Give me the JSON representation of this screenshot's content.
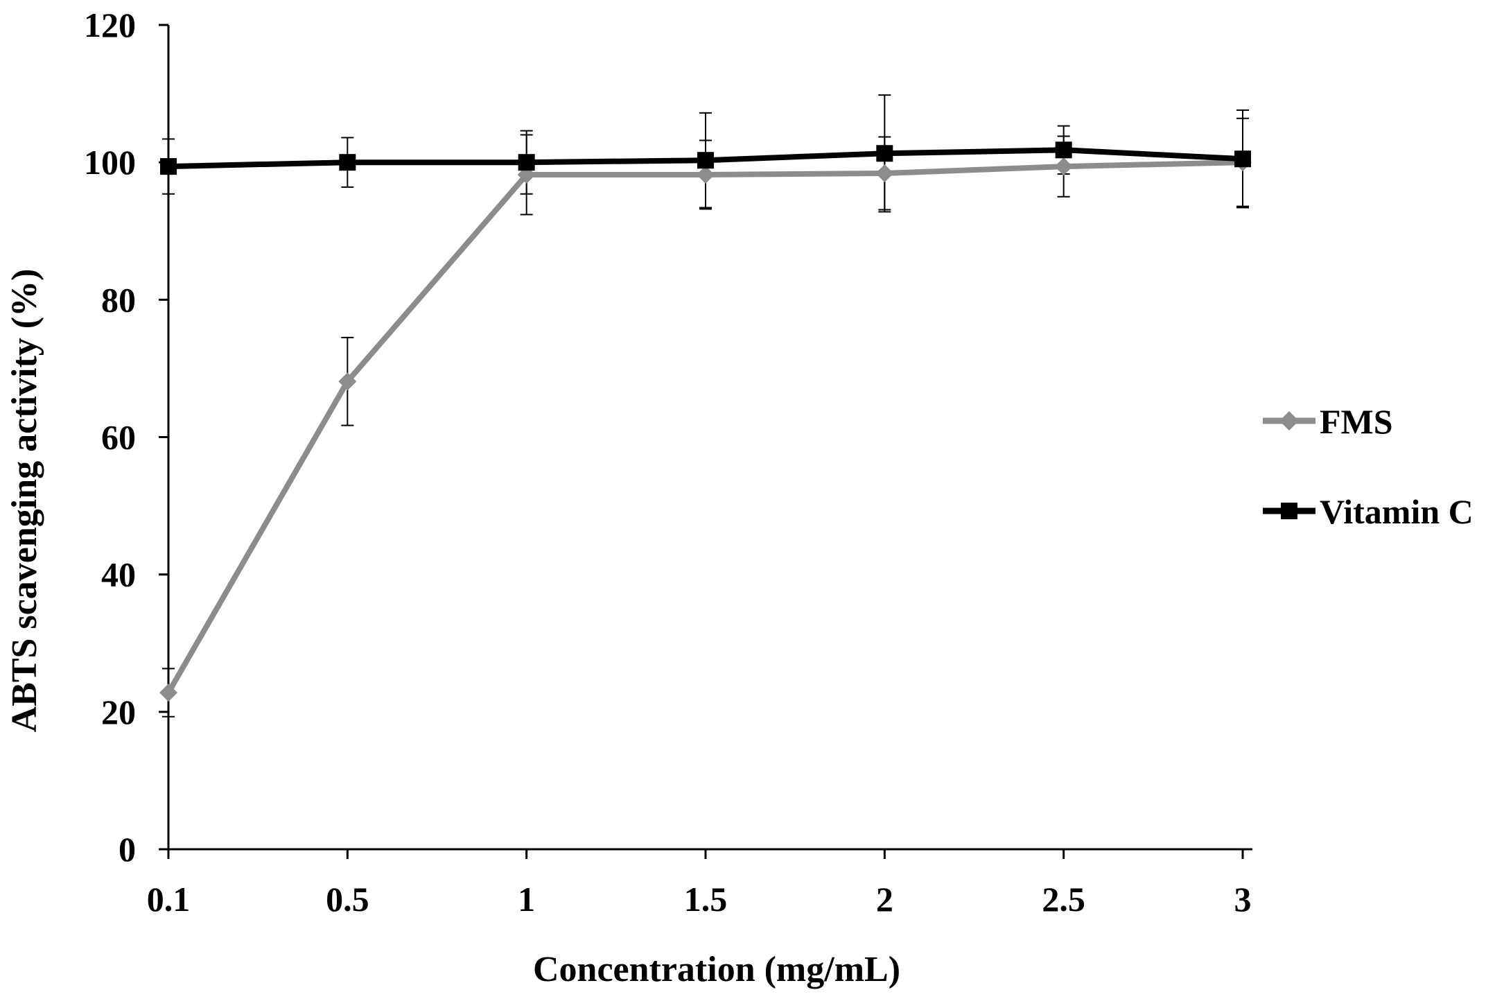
{
  "chart_data": {
    "type": "line",
    "title": "",
    "xlabel": "Concentration  (mg/mL)",
    "ylabel": "ABTS scavenging  activity  (%)",
    "categories": [
      "0.1",
      "0.5",
      "1",
      "1.5",
      "2",
      "2.5",
      "3"
    ],
    "ylim": [
      0,
      120
    ],
    "yticks": [
      "0",
      "20",
      "40",
      "60",
      "80",
      "100",
      "120"
    ],
    "grid": false,
    "legend_position": "right",
    "series": [
      {
        "name": "FMS",
        "marker": "diamond",
        "color": "#8c8c8c",
        "values": [
          22.8,
          68.1,
          98.2,
          98.2,
          98.4,
          99.4,
          100.0
        ],
        "errors": [
          3.5,
          6.4,
          5.8,
          5.0,
          5.3,
          4.4,
          6.4
        ]
      },
      {
        "name": "Vitamin C",
        "marker": "square",
        "color": "#000000",
        "values": [
          99.4,
          100.0,
          100.0,
          100.3,
          101.3,
          101.8,
          100.5
        ],
        "errors": [
          4.0,
          3.6,
          4.6,
          6.9,
          8.5,
          3.5,
          7.1
        ]
      }
    ]
  }
}
